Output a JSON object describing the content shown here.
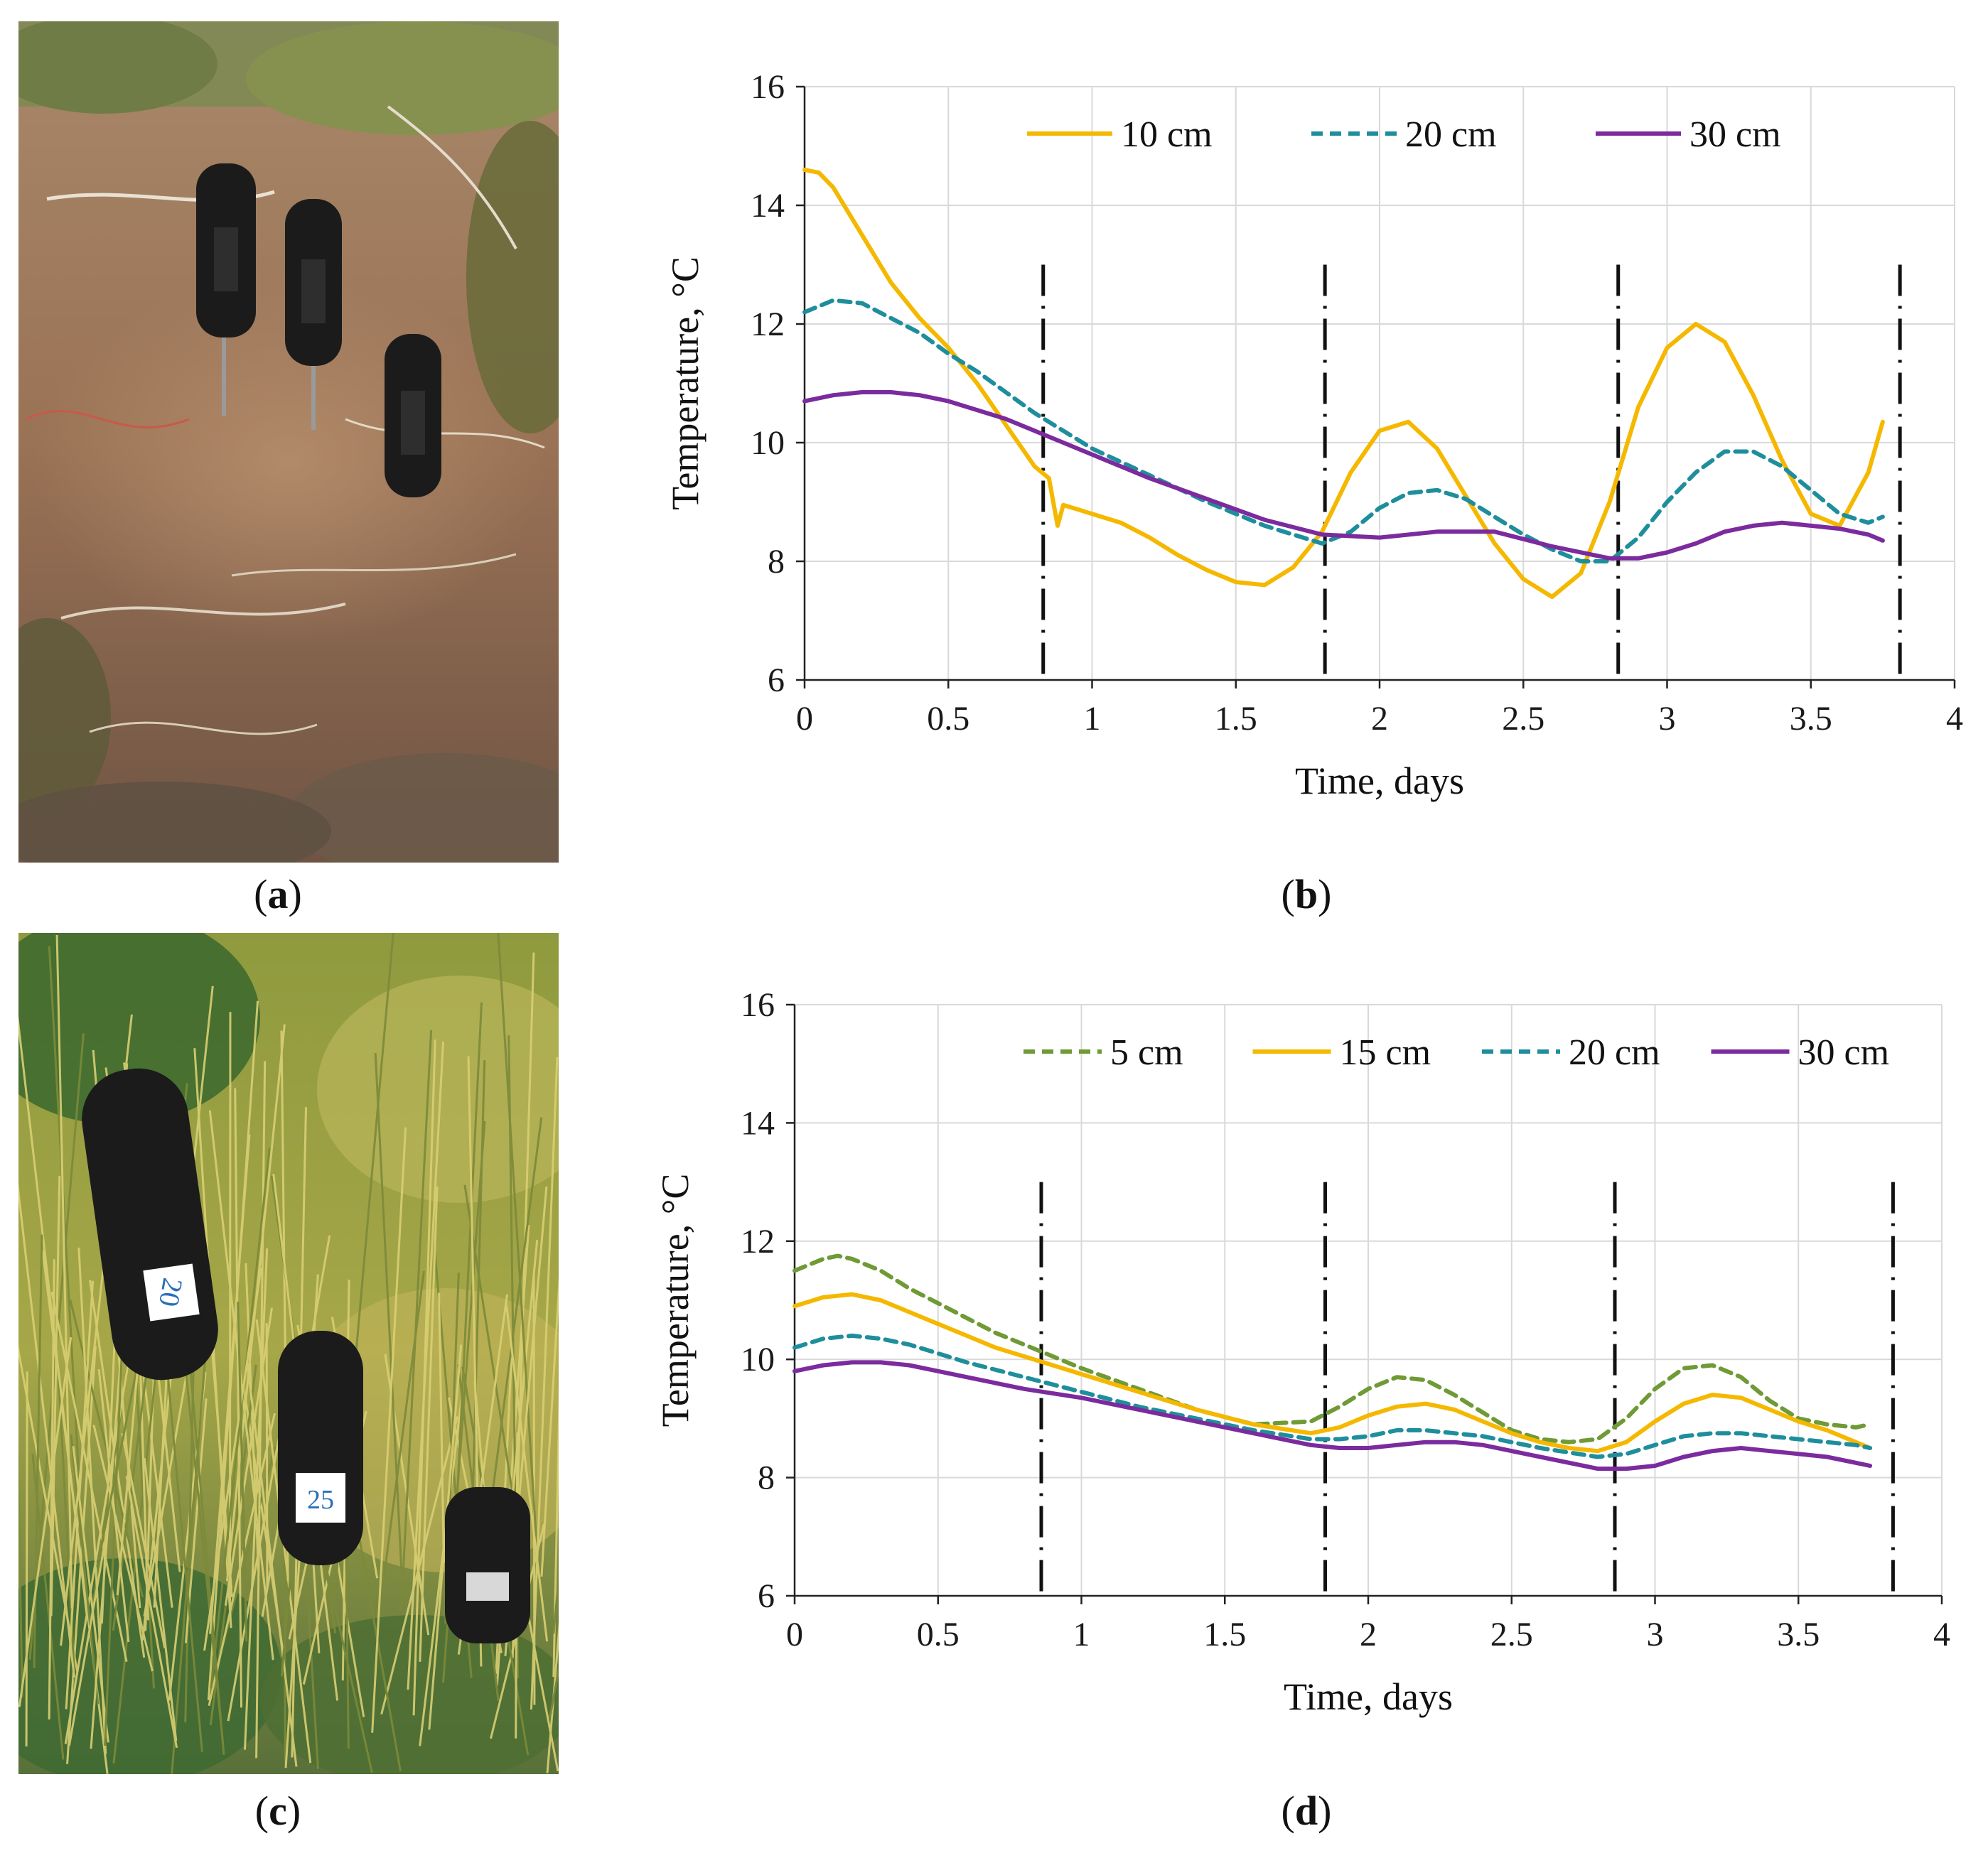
{
  "panels": {
    "a": {
      "label": "a"
    },
    "b": {
      "label": "b"
    },
    "c": {
      "label": "c"
    },
    "d": {
      "label": "d"
    }
  },
  "photos": {
    "a": {
      "loggers": [
        {
          "marking": "",
          "color": "#1b1b1b"
        },
        {
          "marking": "",
          "color": "#1b1b1b"
        },
        {
          "marking": "",
          "color": "#1b1b1b"
        }
      ]
    },
    "c": {
      "loggers": [
        {
          "marking": "20",
          "color": "#1b1b1b"
        },
        {
          "marking": "25",
          "color": "#1b1b1b"
        },
        {
          "marking": "",
          "color": "#1b1b1b"
        }
      ]
    }
  },
  "colors": {
    "yellow": "#f5b800",
    "teal": "#1f8e9c",
    "purple": "#7b2b9e",
    "green": "#6f9a35",
    "grid": "#d9d9d9",
    "dash": "#111111"
  },
  "chart_data": [
    {
      "id": "b",
      "type": "line",
      "title": "",
      "xlabel": "Time, days",
      "ylabel": "Temperature, °C",
      "xlim": [
        0,
        4
      ],
      "ylim": [
        6,
        16
      ],
      "xticks": [
        "0",
        "0.5",
        "1",
        "1.5",
        "2",
        "2.5",
        "3",
        "3.5",
        "4"
      ],
      "yticks": [
        "6",
        "8",
        "10",
        "12",
        "14",
        "16"
      ],
      "grid": "horizontal",
      "legend": "top",
      "day_markers": [
        0.83,
        1.81,
        2.83,
        3.81
      ],
      "series": [
        {
          "name": "10 cm",
          "color": "#f5b800",
          "style": "solid",
          "x": [
            0,
            0.05,
            0.1,
            0.2,
            0.3,
            0.4,
            0.5,
            0.6,
            0.7,
            0.8,
            0.85,
            0.88,
            0.9,
            1.0,
            1.1,
            1.2,
            1.3,
            1.4,
            1.5,
            1.6,
            1.7,
            1.8,
            1.9,
            2.0,
            2.1,
            2.2,
            2.3,
            2.4,
            2.5,
            2.6,
            2.7,
            2.8,
            2.9,
            3.0,
            3.1,
            3.2,
            3.3,
            3.4,
            3.5,
            3.6,
            3.7,
            3.75
          ],
          "y": [
            14.6,
            14.55,
            14.3,
            13.5,
            12.7,
            12.1,
            11.6,
            11.0,
            10.3,
            9.6,
            9.4,
            8.6,
            8.95,
            8.8,
            8.65,
            8.4,
            8.1,
            7.85,
            7.65,
            7.6,
            7.9,
            8.5,
            9.5,
            10.2,
            10.35,
            9.9,
            9.1,
            8.3,
            7.7,
            7.4,
            7.8,
            9.0,
            10.6,
            11.6,
            12.0,
            11.7,
            10.8,
            9.7,
            8.8,
            8.6,
            9.5,
            10.35
          ]
        },
        {
          "name": "20 cm",
          "color": "#1f8e9c",
          "style": "dashed",
          "x": [
            0,
            0.1,
            0.2,
            0.3,
            0.4,
            0.5,
            0.6,
            0.7,
            0.8,
            0.9,
            1.0,
            1.2,
            1.4,
            1.6,
            1.8,
            1.9,
            2.0,
            2.1,
            2.2,
            2.3,
            2.4,
            2.5,
            2.6,
            2.7,
            2.8,
            2.9,
            3.0,
            3.1,
            3.2,
            3.3,
            3.4,
            3.5,
            3.6,
            3.7,
            3.75
          ],
          "y": [
            12.2,
            12.4,
            12.35,
            12.1,
            11.85,
            11.5,
            11.2,
            10.85,
            10.5,
            10.2,
            9.9,
            9.45,
            9.0,
            8.6,
            8.3,
            8.5,
            8.9,
            9.15,
            9.2,
            9.05,
            8.75,
            8.45,
            8.2,
            8.0,
            8.0,
            8.4,
            9.0,
            9.5,
            9.85,
            9.85,
            9.6,
            9.2,
            8.8,
            8.65,
            8.75
          ]
        },
        {
          "name": "30 cm",
          "color": "#7b2b9e",
          "style": "solid",
          "x": [
            0,
            0.1,
            0.2,
            0.3,
            0.4,
            0.5,
            0.6,
            0.7,
            0.8,
            0.9,
            1.0,
            1.2,
            1.4,
            1.6,
            1.8,
            2.0,
            2.2,
            2.4,
            2.6,
            2.8,
            2.9,
            3.0,
            3.1,
            3.2,
            3.3,
            3.4,
            3.5,
            3.6,
            3.7,
            3.75
          ],
          "y": [
            10.7,
            10.8,
            10.85,
            10.85,
            10.8,
            10.7,
            10.55,
            10.4,
            10.2,
            10.0,
            9.8,
            9.4,
            9.05,
            8.7,
            8.45,
            8.4,
            8.5,
            8.5,
            8.25,
            8.05,
            8.05,
            8.15,
            8.3,
            8.5,
            8.6,
            8.65,
            8.6,
            8.55,
            8.45,
            8.35
          ]
        }
      ]
    },
    {
      "id": "d",
      "type": "line",
      "title": "",
      "xlabel": "Time, days",
      "ylabel": "Temperature, °C",
      "xlim": [
        0,
        4
      ],
      "ylim": [
        6,
        16
      ],
      "xticks": [
        "0",
        "0.5",
        "1",
        "1.5",
        "2",
        "2.5",
        "3",
        "3.5",
        "4"
      ],
      "yticks": [
        "6",
        "8",
        "10",
        "12",
        "14",
        "16"
      ],
      "grid": "horizontal",
      "legend": "top",
      "day_markers": [
        0.86,
        1.85,
        2.86,
        3.83
      ],
      "series": [
        {
          "name": "5 cm",
          "color": "#6f9a35",
          "style": "dashed",
          "x": [
            0,
            0.1,
            0.15,
            0.2,
            0.3,
            0.4,
            0.5,
            0.6,
            0.7,
            0.8,
            0.9,
            1.0,
            1.2,
            1.4,
            1.6,
            1.8,
            1.9,
            2.0,
            2.1,
            2.2,
            2.3,
            2.4,
            2.5,
            2.6,
            2.7,
            2.8,
            2.9,
            3.0,
            3.1,
            3.2,
            3.3,
            3.4,
            3.5,
            3.6,
            3.7,
            3.75
          ],
          "y": [
            11.5,
            11.7,
            11.75,
            11.7,
            11.5,
            11.2,
            10.95,
            10.7,
            10.45,
            10.25,
            10.05,
            9.85,
            9.5,
            9.15,
            8.9,
            8.95,
            9.2,
            9.5,
            9.7,
            9.65,
            9.4,
            9.1,
            8.8,
            8.65,
            8.6,
            8.65,
            9.0,
            9.5,
            9.85,
            9.9,
            9.7,
            9.3,
            9.0,
            8.9,
            8.85,
            8.9
          ]
        },
        {
          "name": "15 cm",
          "color": "#f5b800",
          "style": "solid",
          "x": [
            0,
            0.1,
            0.2,
            0.3,
            0.4,
            0.5,
            0.6,
            0.7,
            0.8,
            0.9,
            1.0,
            1.2,
            1.4,
            1.6,
            1.8,
            1.9,
            2.0,
            2.1,
            2.2,
            2.3,
            2.4,
            2.5,
            2.6,
            2.7,
            2.8,
            2.9,
            3.0,
            3.1,
            3.2,
            3.3,
            3.4,
            3.5,
            3.6,
            3.7,
            3.75
          ],
          "y": [
            10.9,
            11.05,
            11.1,
            11.0,
            10.8,
            10.6,
            10.4,
            10.2,
            10.05,
            9.9,
            9.75,
            9.45,
            9.15,
            8.9,
            8.75,
            8.85,
            9.05,
            9.2,
            9.25,
            9.15,
            8.95,
            8.75,
            8.6,
            8.5,
            8.45,
            8.6,
            8.95,
            9.25,
            9.4,
            9.35,
            9.15,
            8.95,
            8.8,
            8.6,
            8.5
          ]
        },
        {
          "name": "20 cm",
          "color": "#1f8e9c",
          "style": "dashed",
          "x": [
            0,
            0.1,
            0.2,
            0.3,
            0.4,
            0.5,
            0.6,
            0.8,
            1.0,
            1.2,
            1.4,
            1.6,
            1.8,
            1.9,
            2.0,
            2.1,
            2.2,
            2.3,
            2.4,
            2.6,
            2.8,
            2.9,
            3.0,
            3.1,
            3.2,
            3.3,
            3.4,
            3.5,
            3.6,
            3.7,
            3.75
          ],
          "y": [
            10.2,
            10.35,
            10.4,
            10.35,
            10.25,
            10.1,
            9.95,
            9.7,
            9.45,
            9.2,
            9.0,
            8.8,
            8.65,
            8.65,
            8.7,
            8.8,
            8.8,
            8.75,
            8.7,
            8.5,
            8.35,
            8.4,
            8.55,
            8.7,
            8.75,
            8.75,
            8.7,
            8.65,
            8.6,
            8.55,
            8.5
          ]
        },
        {
          "name": "30 cm",
          "color": "#7b2b9e",
          "style": "solid",
          "x": [
            0,
            0.1,
            0.2,
            0.3,
            0.4,
            0.5,
            0.6,
            0.8,
            1.0,
            1.2,
            1.4,
            1.6,
            1.8,
            1.9,
            2.0,
            2.1,
            2.2,
            2.3,
            2.4,
            2.6,
            2.8,
            2.9,
            3.0,
            3.1,
            3.2,
            3.3,
            3.4,
            3.5,
            3.6,
            3.7,
            3.75
          ],
          "y": [
            9.8,
            9.9,
            9.95,
            9.95,
            9.9,
            9.8,
            9.7,
            9.5,
            9.35,
            9.15,
            8.95,
            8.75,
            8.55,
            8.5,
            8.5,
            8.55,
            8.6,
            8.6,
            8.55,
            8.35,
            8.15,
            8.15,
            8.2,
            8.35,
            8.45,
            8.5,
            8.45,
            8.4,
            8.35,
            8.25,
            8.2
          ]
        }
      ]
    }
  ]
}
